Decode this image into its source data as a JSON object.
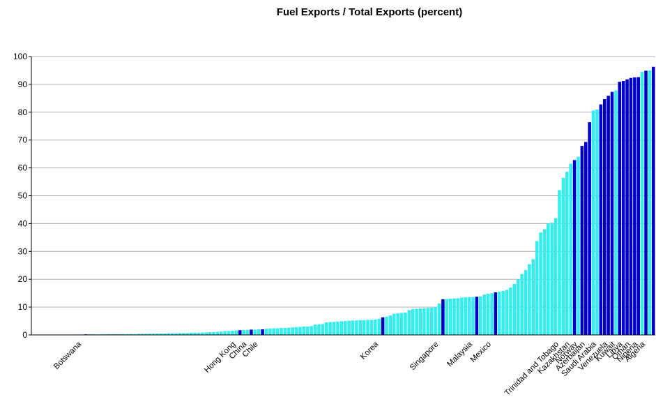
{
  "chart_data": {
    "type": "bar",
    "title": "Fuel Exports / Total Exports (percent)",
    "categories": [
      null,
      null,
      null,
      null,
      null,
      null,
      null,
      null,
      null,
      null,
      null,
      null,
      null,
      null,
      "Botswana",
      null,
      null,
      null,
      null,
      null,
      null,
      null,
      null,
      null,
      null,
      null,
      null,
      null,
      null,
      null,
      null,
      null,
      null,
      null,
      null,
      null,
      null,
      null,
      null,
      null,
      null,
      null,
      null,
      null,
      null,
      null,
      null,
      null,
      null,
      null,
      null,
      null,
      null,
      null,
      null,
      "Hong Kong",
      null,
      null,
      "China",
      null,
      null,
      "Chile",
      null,
      null,
      null,
      null,
      null,
      null,
      null,
      null,
      null,
      null,
      null,
      null,
      null,
      null,
      null,
      null,
      null,
      null,
      null,
      null,
      null,
      null,
      null,
      null,
      null,
      null,
      null,
      null,
      null,
      null,
      null,
      "Korea",
      null,
      null,
      null,
      null,
      null,
      null,
      null,
      null,
      null,
      null,
      null,
      null,
      null,
      null,
      null,
      "Singapore",
      null,
      null,
      null,
      null,
      null,
      null,
      null,
      null,
      "Malaysia",
      null,
      null,
      null,
      null,
      "Mexico",
      null,
      null,
      null,
      null,
      null,
      null,
      null,
      null,
      null,
      null,
      null,
      null,
      null,
      null,
      null,
      null,
      null,
      "Trinidad and Tobago",
      null,
      null,
      "Kazakhstan",
      null,
      "Norway",
      null,
      "Azerbaijan",
      null,
      null,
      "Saudi Arabia",
      null,
      null,
      "Venezuela",
      null,
      "Kuwait",
      null,
      "Libya",
      null,
      "Oman",
      null,
      "Nigeria",
      null,
      "Algeria",
      null
    ],
    "values": [
      0.05,
      0.05,
      0.05,
      0.05,
      0.1,
      0.1,
      0.1,
      0.1,
      0.1,
      0.1,
      0.1,
      0.15,
      0.15,
      0.15,
      0.2,
      0.2,
      0.2,
      0.2,
      0.2,
      0.2,
      0.25,
      0.25,
      0.25,
      0.25,
      0.3,
      0.3,
      0.3,
      0.3,
      0.4,
      0.4,
      0.4,
      0.45,
      0.45,
      0.5,
      0.5,
      0.5,
      0.55,
      0.6,
      0.6,
      0.65,
      0.7,
      0.7,
      0.75,
      0.8,
      0.8,
      0.85,
      0.9,
      1.0,
      1.0,
      1.1,
      1.2,
      1.3,
      1.4,
      1.5,
      1.6,
      1.7,
      1.8,
      1.8,
      1.9,
      1.9,
      2.0,
      2.0,
      2.2,
      2.3,
      2.4,
      2.4,
      2.5,
      2.5,
      2.6,
      2.7,
      2.8,
      2.9,
      3.0,
      3.0,
      3.2,
      3.7,
      3.8,
      3.9,
      4.5,
      4.6,
      4.7,
      4.8,
      4.9,
      5.0,
      5.1,
      5.2,
      5.2,
      5.3,
      5.3,
      5.4,
      5.4,
      5.5,
      5.8,
      6.3,
      6.5,
      7.0,
      7.6,
      7.8,
      7.9,
      8.0,
      8.9,
      9.3,
      9.4,
      9.5,
      9.6,
      9.7,
      9.8,
      10.0,
      11.3,
      12.8,
      12.9,
      13.0,
      13.1,
      13.2,
      13.4,
      13.5,
      13.6,
      13.6,
      13.7,
      13.8,
      14.5,
      14.8,
      15.0,
      15.3,
      15.5,
      15.8,
      16.2,
      17.0,
      18.3,
      20.0,
      21.8,
      23.3,
      25.4,
      27.2,
      33.7,
      36.8,
      38.0,
      40.0,
      40.3,
      41.9,
      52.0,
      56.4,
      58.6,
      61.5,
      62.8,
      64.0,
      67.9,
      69.3,
      76.4,
      80.6,
      81.0,
      82.8,
      84.7,
      85.9,
      87.3,
      87.8,
      90.9,
      91.2,
      91.8,
      92.3,
      92.5,
      92.6,
      94.5,
      94.9,
      95.0,
      96.3
    ],
    "colors": [
      "#3ee",
      "#3ee",
      "#3ee",
      "#3ee",
      "#3ee",
      "#3ee",
      "#3ee",
      "#3ee",
      "#3ee",
      "#3ee",
      "#3ee",
      "#3ee",
      "#3ee",
      "#3ee",
      "#00c",
      "#3ee",
      "#3ee",
      "#3ee",
      "#3ee",
      "#3ee",
      "#3ee",
      "#3ee",
      "#3ee",
      "#3ee",
      "#3ee",
      "#3ee",
      "#3ee",
      "#3ee",
      "#3ee",
      "#3ee",
      "#3ee",
      "#3ee",
      "#3ee",
      "#3ee",
      "#3ee",
      "#3ee",
      "#3ee",
      "#3ee",
      "#3ee",
      "#3ee",
      "#3ee",
      "#3ee",
      "#3ee",
      "#3ee",
      "#3ee",
      "#3ee",
      "#3ee",
      "#3ee",
      "#3ee",
      "#3ee",
      "#3ee",
      "#3ee",
      "#3ee",
      "#3ee",
      "#3ee",
      "#00c",
      "#3ee",
      "#3ee",
      "#00c",
      "#3ee",
      "#3ee",
      "#00c",
      "#3ee",
      "#3ee",
      "#3ee",
      "#3ee",
      "#3ee",
      "#3ee",
      "#3ee",
      "#3ee",
      "#3ee",
      "#3ee",
      "#3ee",
      "#3ee",
      "#3ee",
      "#3ee",
      "#3ee",
      "#3ee",
      "#3ee",
      "#3ee",
      "#3ee",
      "#3ee",
      "#3ee",
      "#3ee",
      "#3ee",
      "#3ee",
      "#3ee",
      "#3ee",
      "#3ee",
      "#3ee",
      "#3ee",
      "#3ee",
      "#3ee",
      "#00c",
      "#3ee",
      "#3ee",
      "#3ee",
      "#3ee",
      "#3ee",
      "#3ee",
      "#3ee",
      "#3ee",
      "#3ee",
      "#3ee",
      "#3ee",
      "#3ee",
      "#3ee",
      "#3ee",
      "#3ee",
      "#00c",
      "#3ee",
      "#3ee",
      "#3ee",
      "#3ee",
      "#3ee",
      "#3ee",
      "#3ee",
      "#3ee",
      "#00c",
      "#3ee",
      "#3ee",
      "#3ee",
      "#3ee",
      "#00c",
      "#3ee",
      "#3ee",
      "#3ee",
      "#3ee",
      "#3ee",
      "#3ee",
      "#3ee",
      "#3ee",
      "#3ee",
      "#3ee",
      "#3ee",
      "#3ee",
      "#3ee",
      "#3ee",
      "#3ee",
      "#3ee",
      "#3ee",
      "#3ee",
      "#3ee",
      "#3ee",
      "#00c",
      "#3ee",
      "#00c",
      "#00c",
      "#00c",
      "#3ee",
      "#3ee",
      "#00c",
      "#00c",
      "#00c",
      "#00c",
      "#3ee",
      "#00c",
      "#00c",
      "#00c",
      "#00c",
      "#00c",
      "#00c",
      "#3ee",
      "#00c",
      "#3ee",
      "#00c"
    ],
    "ylim": [
      0,
      100
    ],
    "yticks": [
      0,
      10,
      20,
      30,
      40,
      50,
      60,
      70,
      80,
      90,
      100
    ],
    "grid": true
  }
}
